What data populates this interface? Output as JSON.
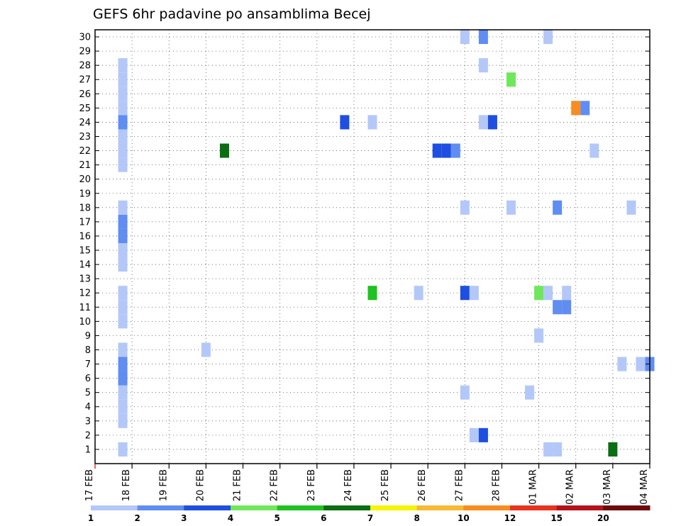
{
  "chart_data": {
    "type": "heatmap",
    "title": "GEFS 6hr padavine po ansamblima Becej",
    "xlabel": "",
    "ylabel": "",
    "x_tick_labels": [
      "17 FEB",
      "18 FEB",
      "19 FEB",
      "20 FEB",
      "21 FEB",
      "22 FEB",
      "23 FEB",
      "24 FEB",
      "25 FEB",
      "26 FEB",
      "27 FEB",
      "28 FEB",
      "01 MAR",
      "02 MAR",
      "03 MAR",
      "04 MAR"
    ],
    "y_tick_labels": [
      "1",
      "2",
      "3",
      "4",
      "5",
      "6",
      "7",
      "8",
      "9",
      "10",
      "11",
      "12",
      "13",
      "14",
      "15",
      "16",
      "17",
      "18",
      "19",
      "20",
      "21",
      "22",
      "23",
      "24",
      "25",
      "26",
      "27",
      "28",
      "29",
      "30"
    ],
    "xlim_steps": [
      0,
      60
    ],
    "ylim": [
      0,
      30
    ],
    "step_unit": "6h",
    "grid": true,
    "colorbar": {
      "labels": [
        "1",
        "2",
        "3",
        "4",
        "5",
        "6",
        "7",
        "8",
        "10",
        "12",
        "15",
        "20"
      ],
      "colors": [
        "#b3c8f9",
        "#5f8df1",
        "#1e4fe0",
        "#6ee85a",
        "#1fc21f",
        "#0b6e13",
        "#f5f500",
        "#f7ba35",
        "#f88c1e",
        "#e8321d",
        "#b5121a",
        "#6e0a0a"
      ]
    },
    "cells": [
      {
        "step": 3,
        "member": 1,
        "v": 1
      },
      {
        "step": 3,
        "member": 3,
        "v": 1
      },
      {
        "step": 3,
        "member": 4,
        "v": 1
      },
      {
        "step": 3,
        "member": 5,
        "v": 1
      },
      {
        "step": 3,
        "member": 6,
        "v": 2
      },
      {
        "step": 3,
        "member": 7,
        "v": 2
      },
      {
        "step": 3,
        "member": 8,
        "v": 1
      },
      {
        "step": 3,
        "member": 10,
        "v": 1
      },
      {
        "step": 3,
        "member": 11,
        "v": 1
      },
      {
        "step": 3,
        "member": 12,
        "v": 1
      },
      {
        "step": 3,
        "member": 14,
        "v": 1
      },
      {
        "step": 3,
        "member": 15,
        "v": 1
      },
      {
        "step": 3,
        "member": 16,
        "v": 2
      },
      {
        "step": 3,
        "member": 17,
        "v": 2
      },
      {
        "step": 3,
        "member": 18,
        "v": 1
      },
      {
        "step": 3,
        "member": 21,
        "v": 1
      },
      {
        "step": 3,
        "member": 22,
        "v": 1
      },
      {
        "step": 3,
        "member": 23,
        "v": 1
      },
      {
        "step": 3,
        "member": 24,
        "v": 2
      },
      {
        "step": 3,
        "member": 25,
        "v": 1
      },
      {
        "step": 3,
        "member": 26,
        "v": 1
      },
      {
        "step": 3,
        "member": 27,
        "v": 1
      },
      {
        "step": 3,
        "member": 28,
        "v": 1
      },
      {
        "step": 12,
        "member": 8,
        "v": 1
      },
      {
        "step": 14,
        "member": 22,
        "v": 6
      },
      {
        "step": 27,
        "member": 24,
        "v": 3
      },
      {
        "step": 30,
        "member": 24,
        "v": 1
      },
      {
        "step": 30,
        "member": 12,
        "v": 5
      },
      {
        "step": 35,
        "member": 12,
        "v": 1
      },
      {
        "step": 37,
        "member": 22,
        "v": 3
      },
      {
        "step": 38,
        "member": 22,
        "v": 3
      },
      {
        "step": 39,
        "member": 22,
        "v": 2
      },
      {
        "step": 40,
        "member": 30,
        "v": 1
      },
      {
        "step": 40,
        "member": 18,
        "v": 1
      },
      {
        "step": 40,
        "member": 12,
        "v": 3
      },
      {
        "step": 40,
        "member": 5,
        "v": 1
      },
      {
        "step": 41,
        "member": 12,
        "v": 1
      },
      {
        "step": 41,
        "member": 2,
        "v": 1
      },
      {
        "step": 42,
        "member": 30,
        "v": 2
      },
      {
        "step": 42,
        "member": 28,
        "v": 1
      },
      {
        "step": 42,
        "member": 24,
        "v": 1
      },
      {
        "step": 42,
        "member": 2,
        "v": 3
      },
      {
        "step": 43,
        "member": 24,
        "v": 3
      },
      {
        "step": 45,
        "member": 27,
        "v": 4
      },
      {
        "step": 45,
        "member": 18,
        "v": 1
      },
      {
        "step": 47,
        "member": 5,
        "v": 1
      },
      {
        "step": 48,
        "member": 12,
        "v": 4
      },
      {
        "step": 48,
        "member": 9,
        "v": 1
      },
      {
        "step": 49,
        "member": 30,
        "v": 1
      },
      {
        "step": 49,
        "member": 12,
        "v": 1
      },
      {
        "step": 49,
        "member": 1,
        "v": 1
      },
      {
        "step": 50,
        "member": 18,
        "v": 2
      },
      {
        "step": 50,
        "member": 11,
        "v": 2
      },
      {
        "step": 50,
        "member": 1,
        "v": 1
      },
      {
        "step": 51,
        "member": 12,
        "v": 1
      },
      {
        "step": 51,
        "member": 11,
        "v": 2
      },
      {
        "step": 52,
        "member": 25,
        "v": 10
      },
      {
        "step": 53,
        "member": 25,
        "v": 2
      },
      {
        "step": 54,
        "member": 22,
        "v": 1
      },
      {
        "step": 56,
        "member": 1,
        "v": 6
      },
      {
        "step": 57,
        "member": 7,
        "v": 1
      },
      {
        "step": 58,
        "member": 18,
        "v": 1
      },
      {
        "step": 59,
        "member": 7,
        "v": 1
      },
      {
        "step": 60,
        "member": 7,
        "v": 2
      }
    ]
  }
}
